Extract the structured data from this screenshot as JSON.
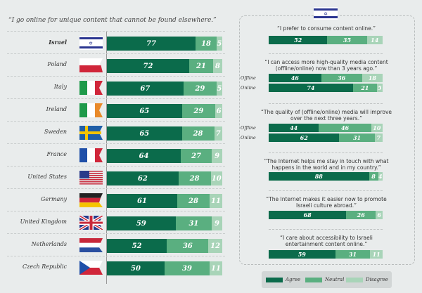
{
  "colors": {
    "agree": "#0b6b4b",
    "neutral": "#5aaf80",
    "disagree": "#a8d4b8"
  },
  "chart_data": [
    {
      "type": "bar",
      "orientation": "horizontal",
      "stacked": true,
      "title": "“I go online for unique content that cannot be found elsewhere.”",
      "categories": [
        "Israel",
        "Poland",
        "Italy",
        "Ireland",
        "Sweden",
        "France",
        "United States",
        "Germany",
        "United Kingdom",
        "Netherlands",
        "Czech Republic"
      ],
      "series": [
        {
          "name": "Agree",
          "values": [
            77,
            72,
            67,
            65,
            65,
            64,
            62,
            61,
            59,
            52,
            50
          ]
        },
        {
          "name": "Neutral",
          "values": [
            18,
            21,
            29,
            29,
            28,
            27,
            28,
            28,
            31,
            36,
            39
          ]
        },
        {
          "name": "Disagree",
          "values": [
            5,
            8,
            5,
            6,
            7,
            9,
            10,
            11,
            9,
            12,
            11
          ]
        }
      ],
      "xlim": [
        0,
        100
      ]
    },
    {
      "type": "bar",
      "orientation": "horizontal",
      "stacked": true,
      "country": "Israel",
      "questions": [
        {
          "text": "“I prefer to consume content online.”",
          "bars": [
            {
              "label": "",
              "values": [
                52,
                35,
                14
              ]
            }
          ]
        },
        {
          "text": "“I can access more high-quality media content (offline/online) now than 3 years ago.”",
          "bars": [
            {
              "label": "Offline",
              "values": [
                46,
                36,
                18
              ]
            },
            {
              "label": "Online",
              "values": [
                74,
                21,
                5
              ]
            }
          ]
        },
        {
          "text": "“The quality of (offline/online) media will improve over the next three years.”",
          "bars": [
            {
              "label": "Offline",
              "values": [
                44,
                46,
                10
              ]
            },
            {
              "label": "Online",
              "values": [
                62,
                31,
                7
              ]
            }
          ]
        },
        {
          "text": "“The Internet helps me stay in touch with what happens in the world and in my country.”",
          "bars": [
            {
              "label": "",
              "values": [
                88,
                8,
                4
              ]
            }
          ]
        },
        {
          "text": "“The Internet makes it easier now to promote Israeli culture abroad.”",
          "bars": [
            {
              "label": "",
              "values": [
                68,
                26,
                6
              ]
            }
          ]
        },
        {
          "text": "“I care about accessibility to Israeli entertainment content online.”",
          "bars": [
            {
              "label": "",
              "values": [
                59,
                31,
                11
              ]
            }
          ]
        }
      ]
    }
  ],
  "legend": {
    "placement": "bottom-right",
    "items": [
      "Agree",
      "Neutral",
      "Disagree"
    ]
  }
}
